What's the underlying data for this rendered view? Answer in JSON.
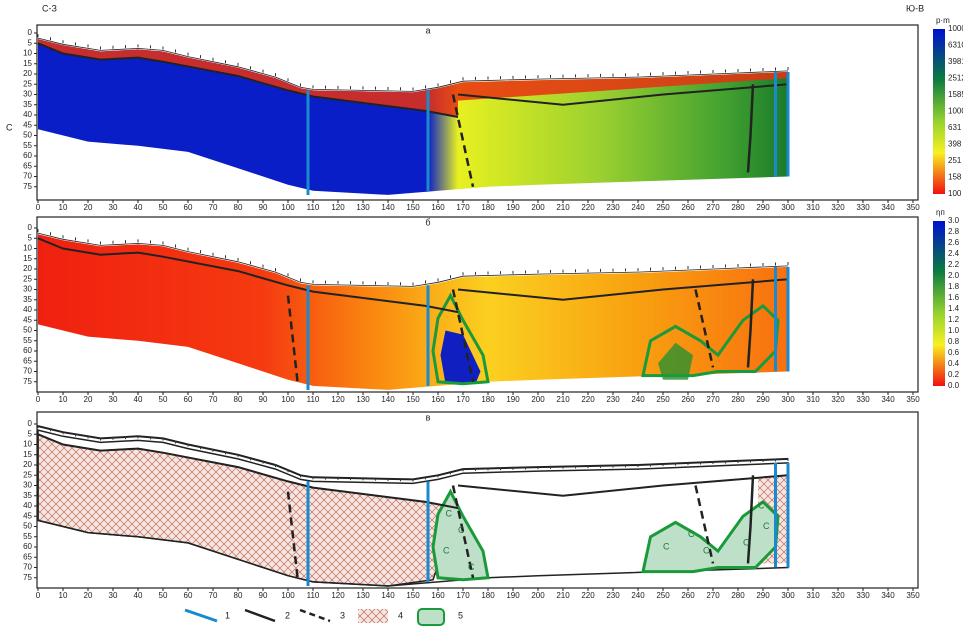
{
  "corner_labels": {
    "left": "С-З",
    "right": "Ю-В"
  },
  "side_label": "С",
  "axes": {
    "xticks": [
      0,
      10,
      20,
      30,
      40,
      50,
      60,
      70,
      80,
      90,
      100,
      110,
      120,
      130,
      140,
      150,
      160,
      170,
      180,
      190,
      200,
      210,
      220,
      230,
      240,
      250,
      260,
      270,
      280,
      290,
      300,
      310,
      320,
      330,
      340,
      350
    ],
    "yticks": [
      0,
      5,
      10,
      15,
      20,
      25,
      30,
      35,
      40,
      45,
      50,
      55,
      60,
      65,
      70,
      75
    ]
  },
  "panels": [
    {
      "label": "а",
      "colorbar": {
        "unit": "р·m",
        "labels": [
          "10000",
          "6310",
          "3981",
          "2512",
          "1585",
          "1000",
          "631",
          "398",
          "251",
          "158",
          "100"
        ]
      }
    },
    {
      "label": "б",
      "colorbar": {
        "unit": "ηп",
        "labels": [
          "3.0",
          "2.8",
          "2.6",
          "2.4",
          "2.2",
          "2.0",
          "1.8",
          "1.6",
          "1.4",
          "1.2",
          "1.0",
          "0.8",
          "0.6",
          "0.4",
          "0.2",
          "0.0"
        ]
      }
    },
    {
      "label": "в"
    }
  ],
  "legend": [
    "1",
    "2",
    "3",
    "4",
    "5"
  ]
}
